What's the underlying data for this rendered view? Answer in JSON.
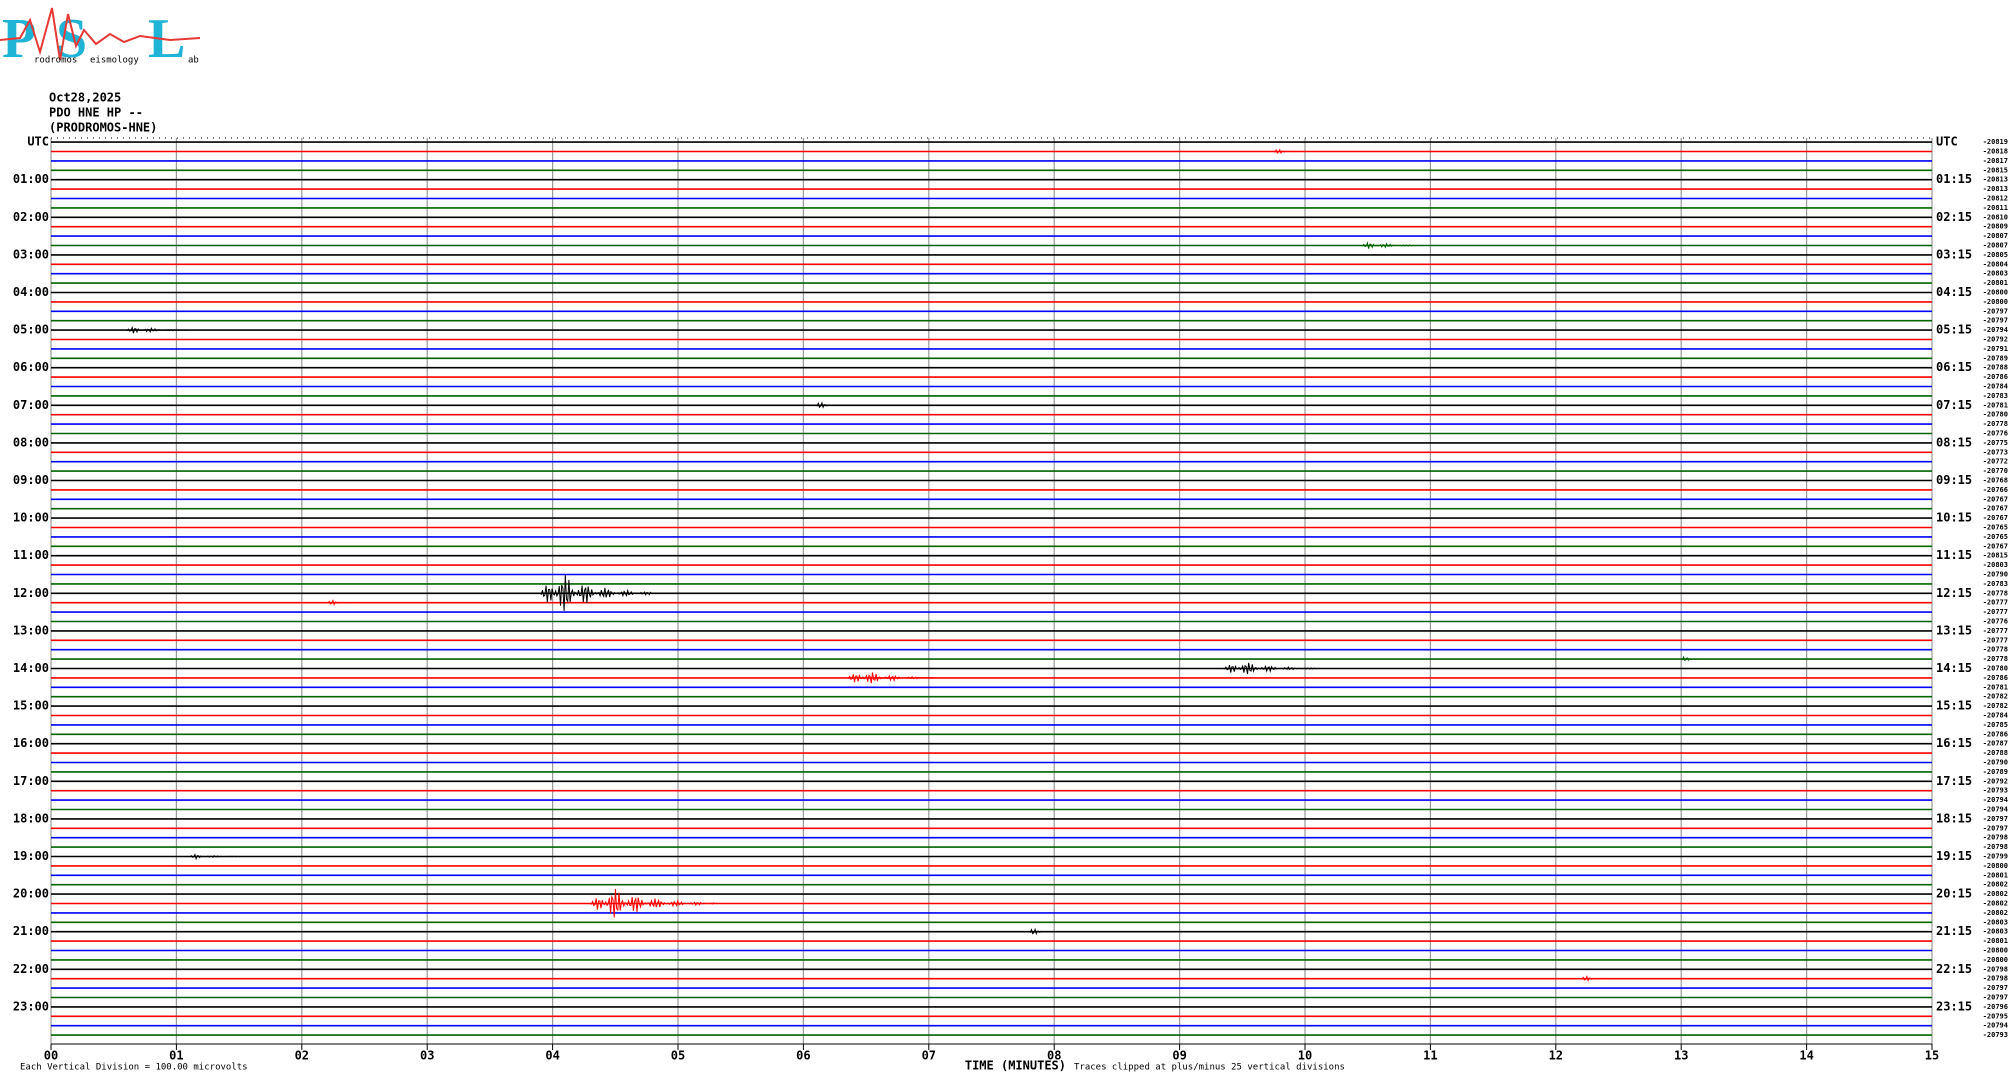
{
  "logo": {
    "letters": [
      "P",
      "S",
      "L"
    ],
    "words": [
      "rodromos",
      "eismology",
      "ab"
    ]
  },
  "chart_data": {
    "type": "helicorder",
    "header": [
      "Oct28,2025",
      "PDO HNE HP --",
      "(PRODROMOS-HNE)"
    ],
    "xlabel": "TIME (MINUTES)",
    "scale_note": "Each Vertical Division =  100.00 microvolts",
    "clip_note": "Traces clipped at plus/minus 25 vertical divisions",
    "xlim": [
      0,
      15
    ],
    "xticks": [
      {
        "value": 0,
        "label": "00"
      },
      {
        "value": 1,
        "label": "01"
      },
      {
        "value": 2,
        "label": "02"
      },
      {
        "value": 3,
        "label": "03"
      },
      {
        "value": 4,
        "label": "04"
      },
      {
        "value": 5,
        "label": "05"
      },
      {
        "value": 6,
        "label": "06"
      },
      {
        "value": 7,
        "label": "07"
      },
      {
        "value": 8,
        "label": "08"
      },
      {
        "value": 9,
        "label": "09"
      },
      {
        "value": 10,
        "label": "10"
      },
      {
        "value": 11,
        "label": "11"
      },
      {
        "value": 12,
        "label": "12"
      },
      {
        "value": 13,
        "label": "13"
      },
      {
        "value": 14,
        "label": "14"
      },
      {
        "value": 15,
        "label": "15"
      }
    ],
    "grid": true,
    "colors": [
      "#000000",
      "#ff0000",
      "#0000ff",
      "#006400"
    ],
    "left_labels": [
      "UTC",
      "01:00",
      "02:00",
      "03:00",
      "04:00",
      "05:00",
      "06:00",
      "07:00",
      "08:00",
      "09:00",
      "10:00",
      "11:00",
      "12:00",
      "13:00",
      "14:00",
      "15:00",
      "16:00",
      "17:00",
      "18:00",
      "19:00",
      "20:00",
      "21:00",
      "22:00",
      "23:00"
    ],
    "right_labels": [
      "UTC",
      "01:15",
      "02:15",
      "03:15",
      "04:15",
      "05:15",
      "06:15",
      "07:15",
      "08:15",
      "09:15",
      "10:15",
      "11:15",
      "12:15",
      "13:15",
      "14:15",
      "15:15",
      "16:15",
      "17:15",
      "18:15",
      "19:15",
      "20:15",
      "21:15",
      "22:15",
      "23:15"
    ],
    "offsets": [
      -20819,
      -20818,
      -20817,
      -20815,
      -20813,
      -20813,
      -20812,
      -20811,
      -20810,
      -20809,
      -20807,
      -20807,
      -20805,
      -20804,
      -20803,
      -20801,
      -20800,
      -20800,
      -20797,
      -20797,
      -20794,
      -20792,
      -20791,
      -20789,
      -20788,
      -20786,
      -20784,
      -20783,
      -20781,
      -20780,
      -20778,
      -20776,
      -20775,
      -20773,
      -20772,
      -20770,
      -20768,
      -20766,
      -20767,
      -20767,
      -20767,
      -20765,
      -20765,
      -20767,
      -20815,
      -20803,
      -20790,
      -20783,
      -20778,
      -20777,
      -20777,
      -20776,
      -20777,
      -20777,
      -20778,
      -20778,
      -20780,
      -20786,
      -20781,
      -20782,
      -20782,
      -20784,
      -20785,
      -20786,
      -20787,
      -20788,
      -20790,
      -20789,
      -20792,
      -20793,
      -20794,
      -20794,
      -20797,
      -20797,
      -20798,
      -20798,
      -20799,
      -20800,
      -20801,
      -20802,
      -20802,
      -20802,
      -20802,
      -20803,
      -20803,
      -20801,
      -20800,
      -20800,
      -20798,
      -20798,
      -20797,
      -20797,
      -20796,
      -20795,
      -20794,
      -20793
    ],
    "events": [
      {
        "row": 1,
        "start": 9.75,
        "end": 9.95,
        "amplitude": 0.3
      },
      {
        "row": 11,
        "start": 10.45,
        "end": 10.95,
        "amplitude": 0.5
      },
      {
        "row": 20,
        "start": 0.6,
        "end": 1.1,
        "amplitude": 0.5
      },
      {
        "row": 28,
        "start": 6.1,
        "end": 6.3,
        "amplitude": 0.4
      },
      {
        "row": 48,
        "start": 3.9,
        "end": 4.8,
        "amplitude": 2.7
      },
      {
        "row": 49,
        "start": 2.2,
        "end": 2.45,
        "amplitude": 0.3
      },
      {
        "row": 55,
        "start": 13.0,
        "end": 13.15,
        "amplitude": 0.3
      },
      {
        "row": 56,
        "start": 9.35,
        "end": 10.1,
        "amplitude": 1.0
      },
      {
        "row": 57,
        "start": 6.35,
        "end": 7.05,
        "amplitude": 1.0
      },
      {
        "row": 76,
        "start": 1.1,
        "end": 1.5,
        "amplitude": 0.3
      },
      {
        "row": 81,
        "start": 4.3,
        "end": 5.3,
        "amplitude": 2.0
      },
      {
        "row": 84,
        "start": 7.8,
        "end": 8.0,
        "amplitude": 0.4
      },
      {
        "row": 89,
        "start": 12.2,
        "end": 12.45,
        "amplitude": 0.3
      }
    ]
  }
}
